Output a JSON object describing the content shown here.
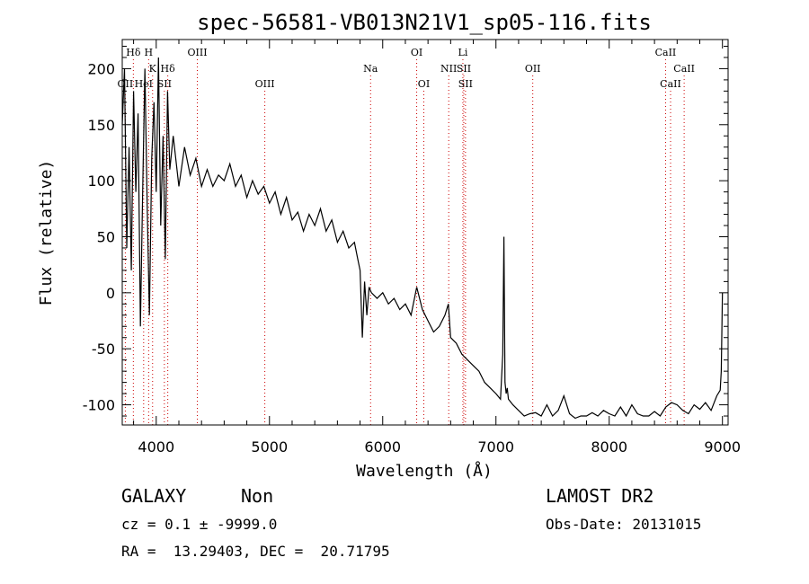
{
  "chart_data": {
    "type": "line",
    "title": "spec-56581-VB013N21V1_sp05-116.fits",
    "xlabel": "Wavelength (Å)",
    "ylabel": "Flux (relative)",
    "xlim": [
      3700,
      9050
    ],
    "ylim": [
      -118,
      226
    ],
    "xticks": [
      4000,
      5000,
      6000,
      7000,
      8000,
      9000
    ],
    "yticks": [
      -100,
      -50,
      0,
      50,
      100,
      150,
      200
    ],
    "grid": false,
    "line_color": "#000000",
    "marker_color": "#cc0000",
    "series": [
      {
        "x": [
          3700,
          3720,
          3740,
          3760,
          3780,
          3800,
          3820,
          3840,
          3860,
          3880,
          3900,
          3920,
          3940,
          3960,
          3980,
          4000,
          4020,
          4040,
          4060,
          4080,
          4100,
          4120,
          4150,
          4200,
          4250,
          4300,
          4350,
          4400,
          4450,
          4500,
          4550,
          4600,
          4650,
          4700,
          4750,
          4800,
          4850,
          4900,
          4950,
          5000,
          5050,
          5100,
          5150,
          5200,
          5250,
          5300,
          5350,
          5400,
          5450,
          5500,
          5550,
          5600,
          5650,
          5700,
          5750,
          5780,
          5800,
          5820,
          5840,
          5860,
          5880,
          5900,
          5950,
          6000,
          6050,
          6100,
          6150,
          6200,
          6250,
          6300,
          6350,
          6400,
          6450,
          6500,
          6550,
          6580,
          6600,
          6650,
          6700,
          6750,
          6800,
          6850,
          6900,
          6950,
          7000,
          7040,
          7060,
          7070,
          7080,
          7090,
          7100,
          7110,
          7150,
          7200,
          7250,
          7300,
          7350,
          7400,
          7450,
          7500,
          7550,
          7600,
          7650,
          7700,
          7750,
          7800,
          7850,
          7900,
          7950,
          8000,
          8050,
          8100,
          8150,
          8200,
          8250,
          8300,
          8350,
          8400,
          8450,
          8500,
          8550,
          8600,
          8650,
          8700,
          8750,
          8800,
          8850,
          8900,
          8950,
          8980,
          8990,
          9000
        ],
        "y": [
          150,
          200,
          40,
          130,
          20,
          180,
          90,
          160,
          -30,
          90,
          200,
          80,
          -20,
          120,
          170,
          90,
          210,
          60,
          140,
          30,
          180,
          110,
          140,
          95,
          130,
          105,
          120,
          95,
          110,
          95,
          105,
          100,
          115,
          95,
          105,
          85,
          100,
          88,
          95,
          80,
          90,
          70,
          85,
          65,
          72,
          55,
          70,
          60,
          75,
          55,
          65,
          45,
          55,
          40,
          45,
          30,
          20,
          -40,
          10,
          -20,
          5,
          0,
          -5,
          0,
          -10,
          -5,
          -15,
          -10,
          -20,
          5,
          -15,
          -25,
          -35,
          -30,
          -20,
          -10,
          -40,
          -45,
          -55,
          -60,
          -65,
          -70,
          -80,
          -85,
          -90,
          -95,
          -55,
          50,
          -80,
          -90,
          -85,
          -95,
          -100,
          -105,
          -110,
          -108,
          -107,
          -110,
          -100,
          -110,
          -105,
          -92,
          -108,
          -112,
          -110,
          -110,
          -107,
          -110,
          -105,
          -108,
          -110,
          -102,
          -110,
          -100,
          -108,
          -110,
          -110,
          -106,
          -110,
          -102,
          -98,
          -100,
          -105,
          -108,
          -100,
          -104,
          -98,
          -105,
          -92,
          -87,
          -70,
          0
        ]
      }
    ]
  },
  "line_markers": [
    {
      "label": "Hδ",
      "x": 3798,
      "row": 1
    },
    {
      "label": "H",
      "x": 3933,
      "row": 1
    },
    {
      "label": "OIII",
      "x": 4363,
      "row": 1
    },
    {
      "label": "K",
      "x": 3968,
      "row": 2
    },
    {
      "label": "Hδ",
      "x": 4102,
      "row": 2
    },
    {
      "label": "OII",
      "x": 3727,
      "row": 3
    },
    {
      "label": "HeI",
      "x": 3889,
      "row": 3
    },
    {
      "label": "SII",
      "x": 4072,
      "row": 3
    },
    {
      "label": "OIII",
      "x": 4959,
      "row": 3
    },
    {
      "label": "Na",
      "x": 5893,
      "row": 2
    },
    {
      "label": "OI",
      "x": 6300,
      "row": 1
    },
    {
      "label": "OI",
      "x": 6363,
      "row": 3
    },
    {
      "label": "Li",
      "x": 6708,
      "row": 1
    },
    {
      "label": "NII",
      "x": 6583,
      "row": 2
    },
    {
      "label": "SII",
      "x": 6716,
      "row": 2
    },
    {
      "label": "SII",
      "x": 6731,
      "row": 3
    },
    {
      "label": "OII",
      "x": 7325,
      "row": 2
    },
    {
      "label": "CaII",
      "x": 8498,
      "row": 1
    },
    {
      "label": "CaII",
      "x": 8662,
      "row": 2
    },
    {
      "label": "CaII",
      "x": 8542,
      "row": 3
    }
  ],
  "info": {
    "class_label": "GALAXY",
    "subclass_label": "Non",
    "survey_label": "LAMOST DR2",
    "cz_text": "cz = 0.1 ± -9999.0",
    "obs_date_text": "Obs-Date: 20131015",
    "coords_text": "RA =  13.29403, DEC =  20.71795"
  }
}
